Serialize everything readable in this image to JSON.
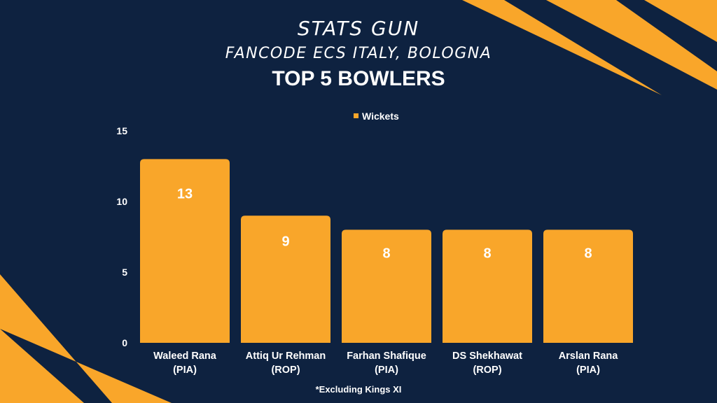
{
  "header": {
    "brand": "STATS GUN",
    "subtitle": "FANCODE ECS ITALY, BOLOGNA"
  },
  "footnote": "*Excluding Kings XI",
  "colors": {
    "background": "#0e2240",
    "bar": "#f9a62a",
    "text": "#ffffff"
  },
  "chart_data": {
    "type": "bar",
    "title": "TOP 5 BOWLERS",
    "xlabel": "",
    "ylabel": "",
    "categories": [
      [
        "Waleed Rana",
        "(PIA)"
      ],
      [
        "Attiq Ur Rehman",
        "(ROP)"
      ],
      [
        "Farhan Shafique",
        "(PIA)"
      ],
      [
        "DS Shekhawat",
        "(ROP)"
      ],
      [
        "Arslan Rana",
        "(PIA)"
      ]
    ],
    "series": [
      {
        "name": "Wickets",
        "values": [
          13,
          9,
          8,
          8,
          8
        ]
      }
    ],
    "ylim": [
      0,
      15
    ],
    "yticks": [
      0,
      5,
      10,
      15
    ],
    "grid": false,
    "legend": "top-center"
  }
}
